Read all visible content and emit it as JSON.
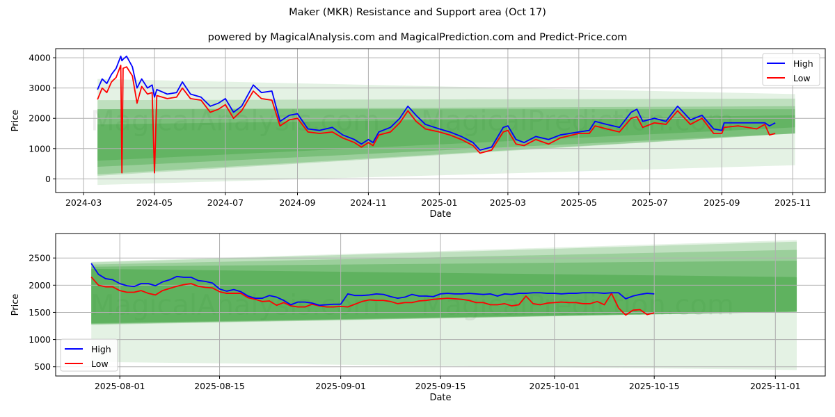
{
  "title": "Maker (MKR) Resistance and Support area (Oct 17)",
  "subtitle": "powered by MagicalAnalysis.com and MagicalPrediction.com and Predict-Price.com",
  "watermarks": [
    "MagicalAnalysis.com",
    "MagicalPrediction.com"
  ],
  "colors": {
    "high": "#0000ff",
    "low": "#ff0000",
    "band": "#2e9a2e"
  },
  "chart_data": [
    {
      "type": "line",
      "xlabel": "Date",
      "ylabel": "Price",
      "xlim": [
        "2024-02-06",
        "2025-11-29"
      ],
      "ylim": [
        -450,
        4300
      ],
      "xticks": [
        "2024-03",
        "2024-05",
        "2024-07",
        "2024-09",
        "2024-11",
        "2025-01",
        "2025-03",
        "2025-05",
        "2025-07",
        "2025-09",
        "2025-11"
      ],
      "yticks": [
        0,
        1000,
        2000,
        3000,
        4000
      ],
      "grid": true,
      "legend": {
        "placement": "top-right",
        "entries": [
          "High",
          "Low"
        ]
      },
      "bands": {
        "start": "2024-03-13",
        "end": "2025-11-03",
        "levels": [
          {
            "start": [
              -200,
              3300
            ],
            "end": [
              450,
              2800
            ],
            "opacity": 0.13
          },
          {
            "start": [
              100,
              2600
            ],
            "end": [
              1500,
              2650
            ],
            "opacity": 0.2
          },
          {
            "start": [
              150,
              2300
            ],
            "end": [
              1500,
              2400
            ],
            "opacity": 0.25
          },
          {
            "start": [
              400,
              2300
            ],
            "end": [
              1500,
              2300
            ],
            "opacity": 0.3
          },
          {
            "start": [
              600,
              1800
            ],
            "end": [
              1700,
              2100
            ],
            "opacity": 0.3
          }
        ]
      },
      "points": [
        [
          "2024-03-13",
          2950,
          2620
        ],
        [
          "2024-03-17",
          3300,
          3000
        ],
        [
          "2024-03-21",
          3150,
          2850
        ],
        [
          "2024-03-25",
          3450,
          3200
        ],
        [
          "2024-03-29",
          3650,
          3350
        ],
        [
          "2024-04-02",
          4050,
          3750
        ],
        [
          "2024-04-03",
          3900,
          200
        ],
        [
          "2024-04-04",
          3950,
          3650
        ],
        [
          "2024-04-07",
          4050,
          3700
        ],
        [
          "2024-04-12",
          3700,
          3400
        ],
        [
          "2024-04-16",
          3000,
          2500
        ],
        [
          "2024-04-20",
          3300,
          3050
        ],
        [
          "2024-04-25",
          3000,
          2800
        ],
        [
          "2024-04-29",
          3100,
          2850
        ],
        [
          "2024-05-01",
          2700,
          200
        ],
        [
          "2024-05-03",
          2950,
          2750
        ],
        [
          "2024-05-12",
          2800,
          2650
        ],
        [
          "2024-05-20",
          2850,
          2700
        ],
        [
          "2024-05-25",
          3200,
          3000
        ],
        [
          "2024-06-01",
          2800,
          2650
        ],
        [
          "2024-06-10",
          2700,
          2600
        ],
        [
          "2024-06-18",
          2400,
          2200
        ],
        [
          "2024-06-25",
          2500,
          2300
        ],
        [
          "2024-07-01",
          2650,
          2450
        ],
        [
          "2024-07-08",
          2200,
          2000
        ],
        [
          "2024-07-15",
          2400,
          2250
        ],
        [
          "2024-07-25",
          3100,
          2900
        ],
        [
          "2024-08-01",
          2850,
          2650
        ],
        [
          "2024-08-10",
          2900,
          2600
        ],
        [
          "2024-08-17",
          1900,
          1750
        ],
        [
          "2024-08-25",
          2100,
          1950
        ],
        [
          "2024-09-01",
          2150,
          2000
        ],
        [
          "2024-09-10",
          1650,
          1550
        ],
        [
          "2024-09-20",
          1600,
          1500
        ],
        [
          "2024-10-01",
          1700,
          1550
        ],
        [
          "2024-10-10",
          1450,
          1350
        ],
        [
          "2024-10-20",
          1300,
          1200
        ],
        [
          "2024-10-26",
          1150,
          1050
        ],
        [
          "2024-11-01",
          1300,
          1200
        ],
        [
          "2024-11-05",
          1200,
          1100
        ],
        [
          "2024-11-10",
          1550,
          1450
        ],
        [
          "2024-11-20",
          1700,
          1550
        ],
        [
          "2024-11-28",
          2000,
          1850
        ],
        [
          "2024-12-05",
          2400,
          2250
        ],
        [
          "2024-12-12",
          2100,
          1900
        ],
        [
          "2024-12-20",
          1800,
          1650
        ],
        [
          "2025-01-01",
          1650,
          1550
        ],
        [
          "2025-01-10",
          1550,
          1450
        ],
        [
          "2025-01-20",
          1400,
          1300
        ],
        [
          "2025-01-30",
          1200,
          1100
        ],
        [
          "2025-02-05",
          950,
          850
        ],
        [
          "2025-02-15",
          1050,
          950
        ],
        [
          "2025-02-25",
          1700,
          1550
        ],
        [
          "2025-03-01",
          1750,
          1600
        ],
        [
          "2025-03-08",
          1300,
          1150
        ],
        [
          "2025-03-15",
          1200,
          1100
        ],
        [
          "2025-03-25",
          1400,
          1300
        ],
        [
          "2025-04-05",
          1300,
          1150
        ],
        [
          "2025-04-15",
          1450,
          1350
        ],
        [
          "2025-05-01",
          1550,
          1500
        ],
        [
          "2025-05-10",
          1600,
          1500
        ],
        [
          "2025-05-15",
          1900,
          1750
        ],
        [
          "2025-05-25",
          1800,
          1650
        ],
        [
          "2025-06-05",
          1700,
          1550
        ],
        [
          "2025-06-15",
          2200,
          2000
        ],
        [
          "2025-06-20",
          2300,
          2050
        ],
        [
          "2025-06-25",
          1900,
          1700
        ],
        [
          "2025-07-05",
          2000,
          1850
        ],
        [
          "2025-07-15",
          1900,
          1800
        ],
        [
          "2025-07-25",
          2400,
          2250
        ],
        [
          "2025-08-05",
          1950,
          1800
        ],
        [
          "2025-08-15",
          2100,
          2000
        ],
        [
          "2025-08-25",
          1650,
          1500
        ],
        [
          "2025-09-01",
          1600,
          1500
        ],
        [
          "2025-09-03",
          1850,
          1700
        ],
        [
          "2025-09-15",
          1850,
          1750
        ],
        [
          "2025-10-01",
          1850,
          1650
        ],
        [
          "2025-10-08",
          1850,
          1800
        ],
        [
          "2025-10-12",
          1750,
          1450
        ],
        [
          "2025-10-17",
          1850,
          1500
        ]
      ]
    },
    {
      "type": "line",
      "xlabel": "Date",
      "ylabel": "Price",
      "xlim": [
        "2025-07-23",
        "2025-11-08"
      ],
      "ylim": [
        330,
        2950
      ],
      "xticks": [
        "2025-08-01",
        "2025-08-15",
        "2025-09-01",
        "2025-09-15",
        "2025-10-01",
        "2025-10-15",
        "2025-11-01"
      ],
      "yticks": [
        500,
        1000,
        1500,
        2000,
        2500
      ],
      "grid": true,
      "legend": {
        "placement": "bottom-left",
        "entries": [
          "High",
          "Low"
        ]
      },
      "bands": {
        "start": "2025-07-28",
        "end": "2025-11-04",
        "levels": [
          {
            "start": [
              590,
              2430
            ],
            "end": [
              440,
              2830
            ],
            "opacity": 0.13
          },
          {
            "start": [
              1270,
              2420
            ],
            "end": [
              1510,
              2800
            ],
            "opacity": 0.2
          },
          {
            "start": [
              1280,
              2380
            ],
            "end": [
              1510,
              2650
            ],
            "opacity": 0.25
          },
          {
            "start": [
              1290,
              2340
            ],
            "end": [
              1510,
              2450
            ],
            "opacity": 0.3
          },
          {
            "start": [
              1300,
              2300
            ],
            "end": [
              1520,
              2150
            ],
            "opacity": 0.35
          }
        ]
      },
      "daily_start": "2025-07-28",
      "high": [
        2400,
        2200,
        2120,
        2100,
        2030,
        1990,
        1975,
        2030,
        2030,
        1990,
        2060,
        2100,
        2160,
        2145,
        2145,
        2085,
        2070,
        2040,
        1930,
        1890,
        1920,
        1880,
        1800,
        1760,
        1760,
        1810,
        1780,
        1720,
        1640,
        1690,
        1690,
        1670,
        1630,
        1640,
        1650,
        1650,
        1840,
        1810,
        1810,
        1820,
        1840,
        1830,
        1790,
        1760,
        1780,
        1830,
        1800,
        1800,
        1790,
        1840,
        1850,
        1840,
        1840,
        1850,
        1840,
        1830,
        1840,
        1800,
        1840,
        1830,
        1850,
        1850,
        1860,
        1860,
        1850,
        1850,
        1840,
        1850,
        1850,
        1860,
        1860,
        1860,
        1850,
        1860,
        1860,
        1750,
        1800,
        1830,
        1850,
        1840
      ],
      "low": [
        2150,
        2000,
        1970,
        1970,
        1900,
        1870,
        1870,
        1900,
        1850,
        1820,
        1900,
        1940,
        1980,
        2010,
        2030,
        1980,
        1960,
        1950,
        1880,
        1850,
        1850,
        1850,
        1770,
        1740,
        1700,
        1710,
        1630,
        1680,
        1620,
        1600,
        1600,
        1650,
        1620,
        1600,
        1600,
        1610,
        1600,
        1650,
        1700,
        1730,
        1720,
        1720,
        1700,
        1660,
        1680,
        1680,
        1710,
        1720,
        1740,
        1750,
        1760,
        1750,
        1740,
        1720,
        1680,
        1680,
        1640,
        1640,
        1660,
        1620,
        1640,
        1800,
        1660,
        1640,
        1670,
        1680,
        1690,
        1680,
        1680,
        1660,
        1660,
        1700,
        1640,
        1850,
        1580,
        1450,
        1540,
        1550,
        1460,
        1490
      ]
    }
  ]
}
